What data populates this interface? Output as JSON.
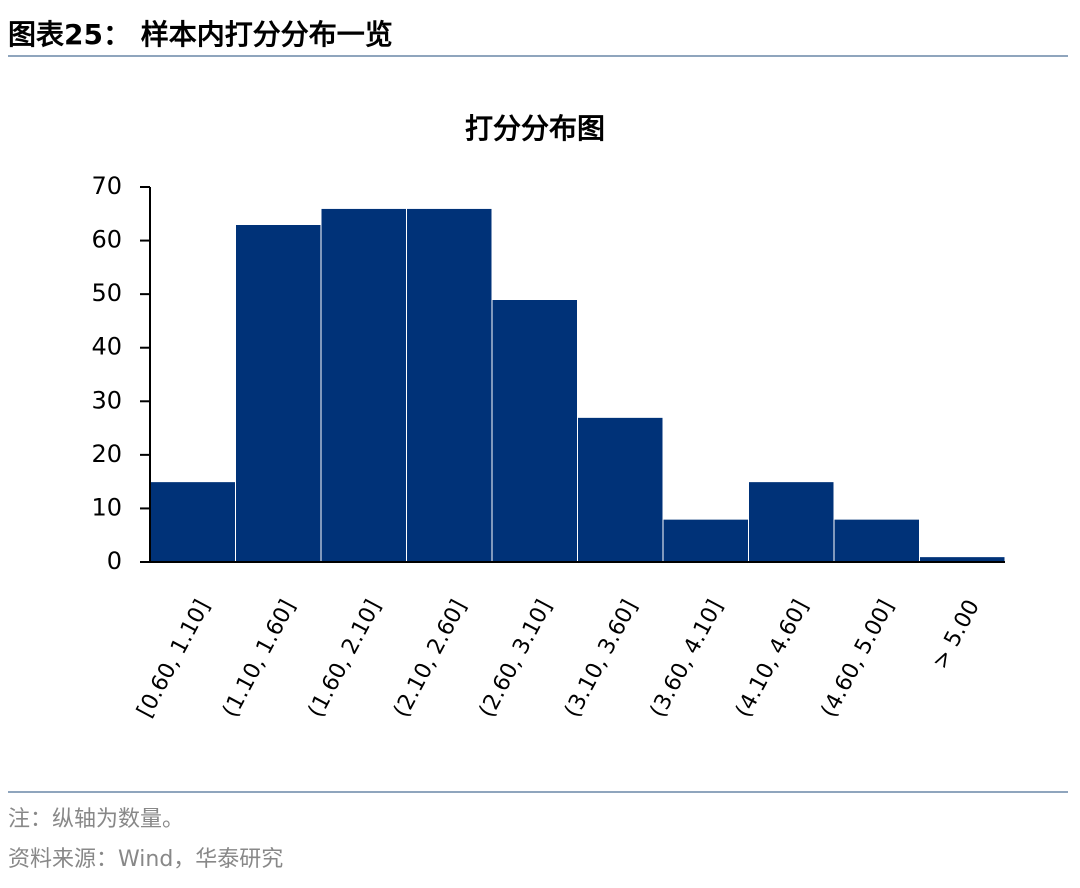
{
  "header": {
    "title": "图表25： 样本内打分分布一览"
  },
  "chart_data": {
    "type": "bar",
    "title": "打分分布图",
    "categories": [
      "[0.60, 1.10]",
      "(1.10, 1.60]",
      "(1.60, 2.10]",
      "(2.10, 2.60]",
      "(2.60, 3.10]",
      "(3.10, 3.60]",
      "(3.60, 4.10]",
      "(4.10, 4.60]",
      "(4.60, 5.00]",
      "> 5.00"
    ],
    "values": [
      15,
      63,
      66,
      66,
      49,
      27,
      8,
      15,
      8,
      1
    ],
    "color": "#003278",
    "ylim": [
      0,
      70
    ],
    "yticks": [
      0,
      10,
      20,
      30,
      40,
      50,
      60,
      70
    ],
    "grid": false
  },
  "footer": {
    "note": "注：纵轴为数量。",
    "source": "资料来源：Wind，华泰研究"
  }
}
